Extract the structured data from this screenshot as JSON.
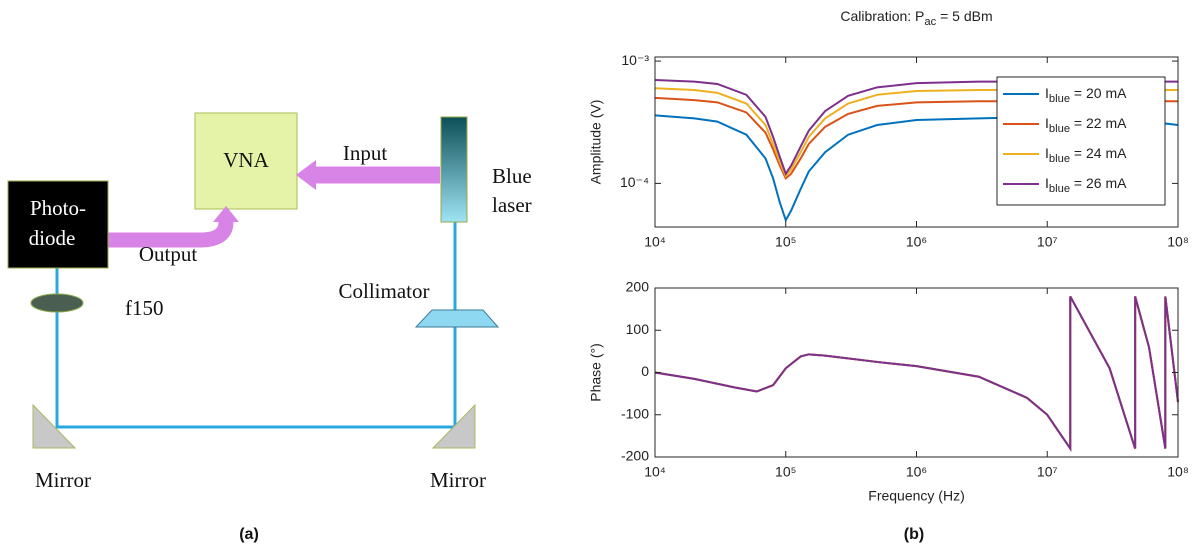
{
  "diagram": {
    "nodes": [
      {
        "label": "VNA"
      },
      {
        "lines": [
          "Photo-",
          "diode"
        ]
      },
      {
        "lines": [
          "Blue",
          "laser"
        ]
      },
      {
        "label": "Collimator"
      },
      {
        "label": "f150"
      },
      {
        "label": "Mirror"
      },
      {
        "label": "Mirror"
      }
    ],
    "edges": [
      {
        "label": "Input"
      },
      {
        "label": "Output"
      }
    ],
    "caption": "(a)"
  },
  "caption_b": "(b)",
  "chart_data": [
    {
      "type": "line",
      "title": "Calibration: Pac = 5 dBm",
      "ylabel": "Amplitude (V)",
      "xscale": "log",
      "yscale": "log",
      "legend": "upper right",
      "x": [
        10000,
        20000,
        30000,
        50000,
        70000,
        80000,
        90000,
        100000,
        110000,
        130000,
        150000,
        200000,
        300000,
        500000,
        1000000,
        3000000,
        10000000,
        30000000,
        100000000
      ],
      "xlim": [
        10000,
        100000000
      ],
      "xticks": [
        {
          "value": 10000,
          "label": "10⁴"
        },
        {
          "value": 100000,
          "label": "10⁵"
        },
        {
          "value": 1000000,
          "label": "10⁶"
        },
        {
          "value": 10000000,
          "label": "10⁷"
        },
        {
          "value": 100000000,
          "label": "10⁸"
        }
      ],
      "ylim": [
        4.4e-05,
        0.00108
      ],
      "yticks": [
        {
          "value": 0.0001,
          "label": "10⁻⁴"
        },
        {
          "value": 0.001,
          "label": "10⁻³"
        }
      ],
      "series": [
        {
          "name": "Iblue = 20 mA",
          "color": "#0072bd",
          "values": [
            0.00036,
            0.00034,
            0.00032,
            0.00025,
            0.00016,
            0.00011,
            7e-05,
            5e-05,
            6e-05,
            9e-05,
            0.000125,
            0.00018,
            0.00025,
            0.0003,
            0.00033,
            0.00034,
            0.00035,
            0.00035,
            0.0003
          ]
        },
        {
          "name": "Iblue = 22 mA",
          "color": "#d95319",
          "values": [
            0.0005,
            0.00048,
            0.00046,
            0.00038,
            0.00026,
            0.00019,
            0.00014,
            0.00011,
            0.00012,
            0.00016,
            0.00021,
            0.00029,
            0.00037,
            0.00043,
            0.00046,
            0.00047,
            0.00047,
            0.00047,
            0.00047
          ]
        },
        {
          "name": "Iblue = 24 mA",
          "color": "#edb120",
          "values": [
            0.0006,
            0.00058,
            0.00055,
            0.00045,
            0.0003,
            0.00021,
            0.00015,
            0.000115,
            0.00013,
            0.00018,
            0.00024,
            0.00034,
            0.00045,
            0.00053,
            0.00057,
            0.00058,
            0.00058,
            0.00058,
            0.00058
          ]
        },
        {
          "name": "Iblue = 26 mA",
          "color": "#7e2f8e",
          "values": [
            0.0007,
            0.00068,
            0.00065,
            0.00053,
            0.00035,
            0.00024,
            0.000165,
            0.00012,
            0.00014,
            0.0002,
            0.00027,
            0.00039,
            0.00052,
            0.00061,
            0.00066,
            0.00068,
            0.00068,
            0.00068,
            0.00068
          ]
        }
      ]
    },
    {
      "type": "line",
      "xlabel": "Frequency (Hz)",
      "ylabel": "Phase (°)",
      "xscale": "log",
      "x": [
        10000,
        20000,
        40000,
        60000,
        80000,
        100000,
        130000,
        150000,
        200000,
        500000,
        1000000,
        3000000,
        7000000,
        10000000,
        15000000,
        15000000,
        30000000,
        47000000,
        47000000,
        60000000,
        80000000,
        80000000,
        100000000
      ],
      "xlim": [
        10000,
        100000000
      ],
      "xticks": [
        {
          "value": 10000,
          "label": "10⁴"
        },
        {
          "value": 100000,
          "label": "10⁵"
        },
        {
          "value": 1000000,
          "label": "10⁶"
        },
        {
          "value": 10000000,
          "label": "10⁷"
        },
        {
          "value": 100000000,
          "label": "10⁸"
        }
      ],
      "ylim": [
        -200,
        200
      ],
      "yticks": [
        -200,
        -100,
        0,
        100,
        200
      ],
      "series": [
        {
          "color": "#0072bd",
          "values": [
            0,
            -15,
            -35,
            -45,
            -30,
            10,
            38,
            43,
            40,
            25,
            15,
            -10,
            -60,
            -100,
            -180,
            180,
            10,
            -180,
            180,
            60,
            -180,
            180,
            -70
          ]
        },
        {
          "color": "#d95319",
          "values": [
            0,
            -15,
            -35,
            -45,
            -30,
            10,
            38,
            43,
            40,
            25,
            15,
            -10,
            -60,
            -100,
            -180,
            180,
            10,
            -180,
            180,
            60,
            -180,
            180,
            -70
          ]
        },
        {
          "color": "#edb120",
          "values": [
            0,
            -15,
            -35,
            -45,
            -30,
            10,
            38,
            43,
            40,
            25,
            15,
            -10,
            -60,
            -100,
            -180,
            180,
            10,
            -180,
            180,
            60,
            -180,
            180,
            -70
          ]
        },
        {
          "color": "#7e2f8e",
          "values": [
            0,
            -15,
            -35,
            -45,
            -30,
            10,
            38,
            43,
            40,
            25,
            15,
            -10,
            -60,
            -100,
            -180,
            180,
            10,
            -180,
            180,
            60,
            -180,
            180,
            -70
          ]
        }
      ]
    }
  ]
}
